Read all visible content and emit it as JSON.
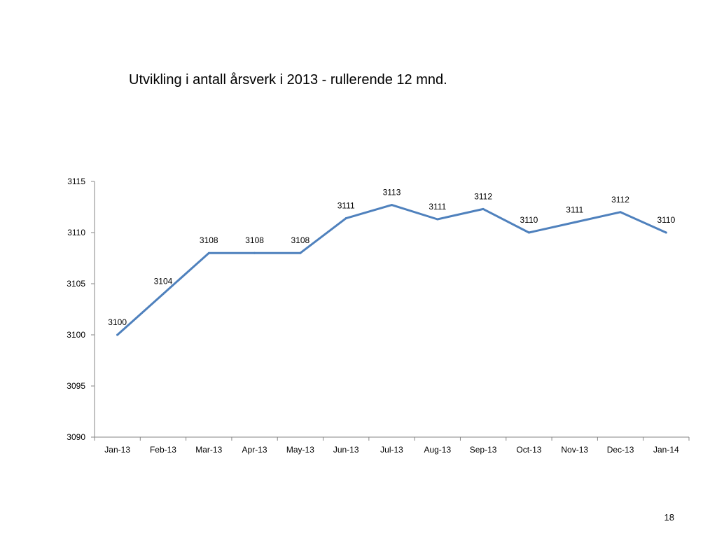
{
  "slide": {
    "title": "Utvikling i antall årsverk i 2013 - rullerende 12 mnd.",
    "page_number": "18"
  },
  "chart_data": {
    "type": "line",
    "title": "",
    "xlabel": "",
    "ylabel": "",
    "categories": [
      "Jan-13",
      "Feb-13",
      "Mar-13",
      "Apr-13",
      "May-13",
      "Jun-13",
      "Jul-13",
      "Aug-13",
      "Sep-13",
      "Oct-13",
      "Nov-13",
      "Dec-13",
      "Jan-14"
    ],
    "series": [
      {
        "values": [
          3100,
          3104,
          3108,
          3108,
          3108,
          3111.4,
          3112.7,
          3111.3,
          3112.3,
          3110,
          3111,
          3112,
          3110
        ],
        "data_labels": [
          "3100",
          "3104",
          "3108",
          "3108",
          "3108",
          "3111",
          "3113",
          "3111",
          "3112",
          "3110",
          "3111",
          "3112",
          "3110"
        ],
        "color": "#4f81bd"
      }
    ],
    "ylim": [
      3090,
      3115
    ],
    "yticks": [
      3090,
      3095,
      3100,
      3105,
      3110,
      3115
    ],
    "grid": false,
    "legend": "none",
    "axis_color": "#868686"
  }
}
